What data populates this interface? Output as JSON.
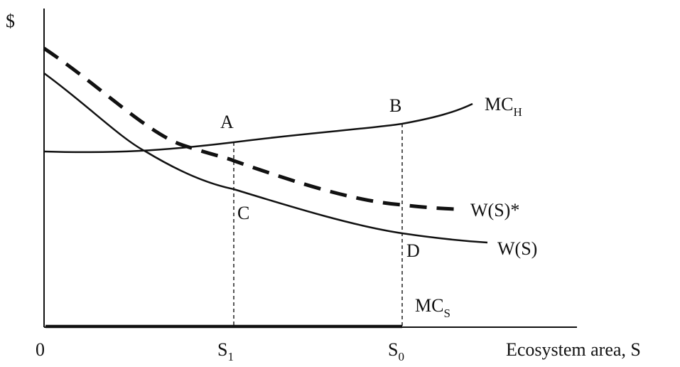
{
  "diagram": {
    "y_axis_label": "$",
    "origin_label": "0",
    "x_axis_label": "Ecosystem area, S",
    "s1": {
      "main": "S",
      "sub": "1"
    },
    "s0": {
      "main": "S",
      "sub": "0"
    },
    "point_a": "A",
    "point_b": "B",
    "point_c": "C",
    "point_d": "D",
    "mch": {
      "main": "MC",
      "sub": "H"
    },
    "mcs": {
      "main": "MC",
      "sub": "S"
    },
    "ws_star": "W(S)*",
    "ws": "W(S)"
  },
  "colors": {
    "ink": "#111111",
    "background": "#ffffff"
  }
}
